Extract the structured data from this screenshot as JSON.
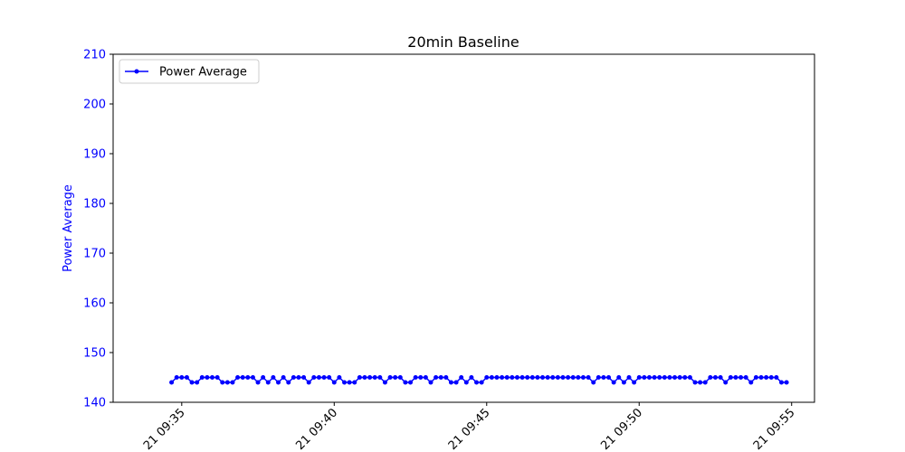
{
  "chart_data": {
    "type": "line",
    "title": "20min Baseline",
    "xlabel": "",
    "ylabel": "Power Average",
    "ylim": [
      140,
      210
    ],
    "yticks": [
      140,
      150,
      160,
      170,
      180,
      190,
      200,
      210
    ],
    "xlim_minutes": [
      "09:32:45",
      "09:55:45"
    ],
    "xticks": [
      {
        "time": "09:35",
        "label": "21 09:35"
      },
      {
        "time": "09:40",
        "label": "21 09:40"
      },
      {
        "time": "09:45",
        "label": "21 09:45"
      },
      {
        "time": "09:50",
        "label": "21 09:50"
      },
      {
        "time": "09:55",
        "label": "21 09:55"
      }
    ],
    "x_start": "09:34:40",
    "x_interval_seconds": 10,
    "legend": "upper-left",
    "grid": false,
    "colors": {
      "series": "#0000ff",
      "axis_text": "#0000ff"
    },
    "series": [
      {
        "name": "Power Average",
        "values": [
          144,
          145,
          145,
          145,
          144,
          144,
          145,
          145,
          145,
          145,
          144,
          144,
          144,
          145,
          145,
          145,
          145,
          144,
          145,
          144,
          145,
          144,
          145,
          144,
          145,
          145,
          145,
          144,
          145,
          145,
          145,
          145,
          144,
          145,
          144,
          144,
          144,
          145,
          145,
          145,
          145,
          145,
          144,
          145,
          145,
          145,
          144,
          144,
          145,
          145,
          145,
          144,
          145,
          145,
          145,
          144,
          144,
          145,
          144,
          145,
          144,
          144,
          145,
          145,
          145,
          145,
          145,
          145,
          145,
          145,
          145,
          145,
          145,
          145,
          145,
          145,
          145,
          145,
          145,
          145,
          145,
          145,
          145,
          144,
          145,
          145,
          145,
          144,
          145,
          144,
          145,
          144,
          145,
          145,
          145,
          145,
          145,
          145,
          145,
          145,
          145,
          145,
          145,
          144,
          144,
          144,
          145,
          145,
          145,
          144,
          145,
          145,
          145,
          145,
          144,
          145,
          145,
          145,
          145,
          145,
          144,
          144
        ]
      }
    ]
  }
}
